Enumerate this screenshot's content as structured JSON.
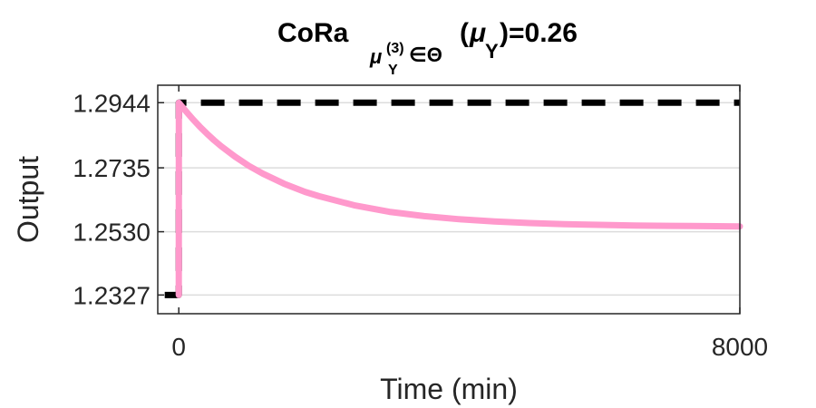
{
  "chart_data": {
    "type": "line",
    "title": {
      "prefix": "CoRa",
      "sub_mu": "μ",
      "sub_mu_sub": "Y",
      "sub_mu_sup": "(3)",
      "sub_in": "∈Θ",
      "open": "(",
      "arg_mu": "μ",
      "arg_sub": "Y",
      "suffix": ")=0.26"
    },
    "xlabel": "Time (min)",
    "ylabel": "Output",
    "xlim": [
      -300,
      8000
    ],
    "ylim": [
      1.2267,
      1.3
    ],
    "x_ticks": [
      0,
      8000
    ],
    "x_tick_labels": [
      "0",
      "8000"
    ],
    "y_ticks": [
      1.2327,
      1.253,
      1.2735,
      1.2944
    ],
    "y_tick_labels": [
      "1.2327",
      "1.2530",
      "1.2735",
      "1.2944"
    ],
    "grid": "horizontal",
    "series": [
      {
        "style": "dashed",
        "color": "#000000",
        "x": [
          -200,
          0,
          0,
          8000
        ],
        "y": [
          1.2327,
          1.2327,
          1.2944,
          1.2944
        ]
      },
      {
        "style": "solid",
        "color": "#ff99cc",
        "x": [
          0,
          0,
          1,
          100,
          200,
          300,
          400,
          500,
          600,
          800,
          1000,
          1200,
          1500,
          1800,
          2000,
          2500,
          3000,
          3500,
          4000,
          4500,
          5000,
          5500,
          6000,
          6500,
          7000,
          7500,
          8000
        ],
        "y": [
          1.2327,
          1.2327,
          1.2944,
          1.2917,
          1.2891,
          1.2867,
          1.2845,
          1.2824,
          1.2805,
          1.2771,
          1.2741,
          1.2716,
          1.2684,
          1.2658,
          1.2644,
          1.2615,
          1.2594,
          1.258,
          1.257,
          1.2563,
          1.2558,
          1.2554,
          1.2552,
          1.255,
          1.2549,
          1.2548,
          1.2547
        ]
      }
    ]
  }
}
